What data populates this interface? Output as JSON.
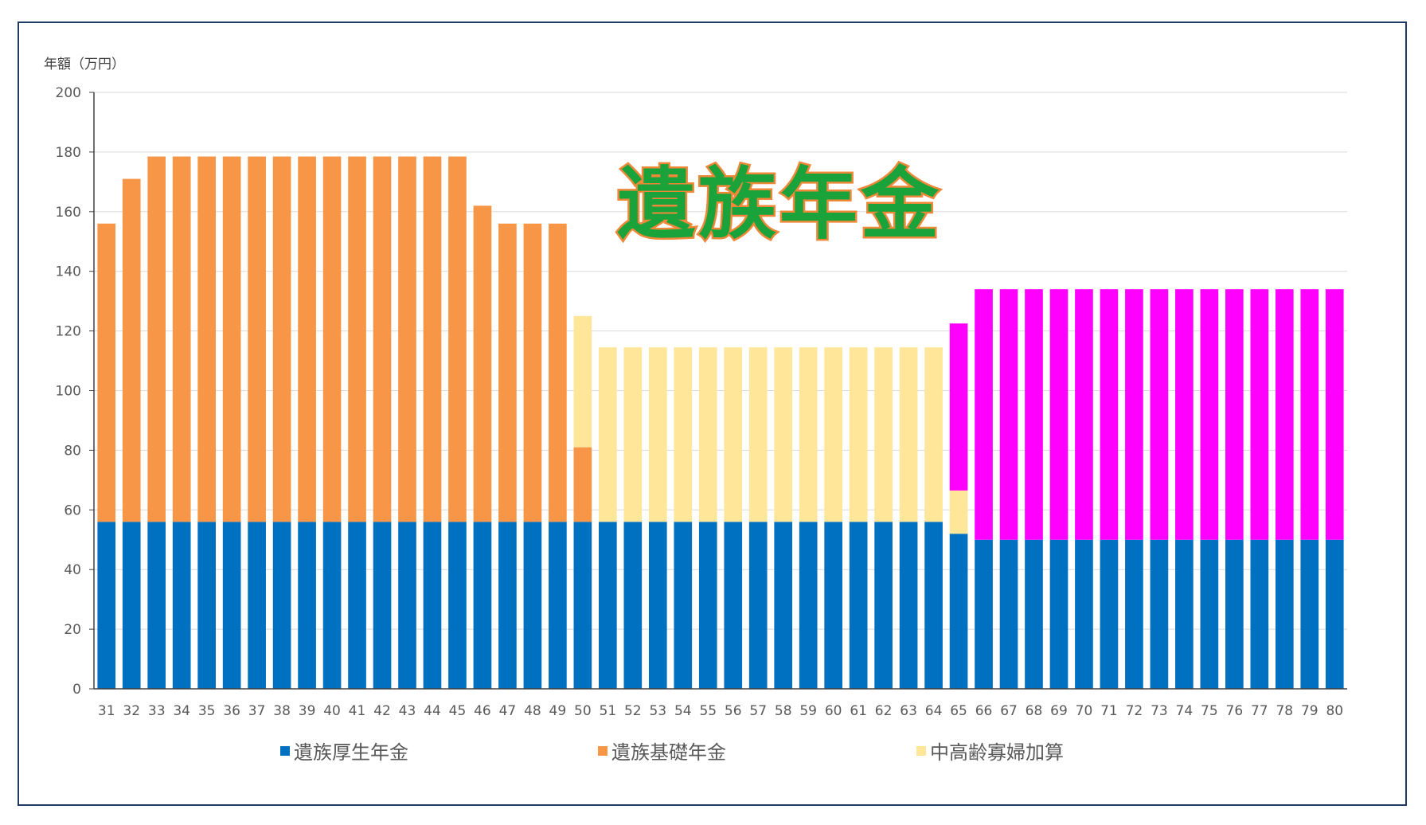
{
  "chart_data": {
    "type": "bar",
    "stacked": true,
    "title": "遺族年金",
    "ylabel": "年額（万円）",
    "xlabel": "",
    "ylim": [
      0,
      200
    ],
    "yticks": [
      0,
      20,
      40,
      60,
      80,
      100,
      120,
      140,
      160,
      180,
      200
    ],
    "grid": true,
    "legend_position": "bottom",
    "categories": [
      "31",
      "32",
      "33",
      "34",
      "35",
      "36",
      "37",
      "38",
      "39",
      "40",
      "41",
      "42",
      "43",
      "44",
      "45",
      "46",
      "47",
      "48",
      "49",
      "50",
      "51",
      "52",
      "53",
      "54",
      "55",
      "56",
      "57",
      "58",
      "59",
      "60",
      "61",
      "62",
      "63",
      "64",
      "65",
      "66",
      "67",
      "68",
      "69",
      "70",
      "71",
      "72",
      "73",
      "74",
      "75",
      "76",
      "77",
      "78",
      "79",
      "80"
    ],
    "series": [
      {
        "name": "遺族厚生年金",
        "color": "#0070c0",
        "values": [
          56,
          56,
          56,
          56,
          56,
          56,
          56,
          56,
          56,
          56,
          56,
          56,
          56,
          56,
          56,
          56,
          56,
          56,
          56,
          56,
          56,
          56,
          56,
          56,
          56,
          56,
          56,
          56,
          56,
          56,
          56,
          56,
          56,
          56,
          52,
          50,
          50,
          50,
          50,
          50,
          50,
          50,
          50,
          50,
          50,
          50,
          50,
          50,
          50,
          50
        ]
      },
      {
        "name": "遺族基礎年金",
        "color": "#f79646",
        "values": [
          100,
          115,
          122.5,
          122.5,
          122.5,
          122.5,
          122.5,
          122.5,
          122.5,
          122.5,
          122.5,
          122.5,
          122.5,
          122.5,
          122.5,
          106,
          100,
          100,
          100,
          25,
          0,
          0,
          0,
          0,
          0,
          0,
          0,
          0,
          0,
          0,
          0,
          0,
          0,
          0,
          0,
          0,
          0,
          0,
          0,
          0,
          0,
          0,
          0,
          0,
          0,
          0,
          0,
          0,
          0,
          0
        ]
      },
      {
        "name": "中高齢寡婦加算",
        "color": "#ffe699",
        "values": [
          0,
          0,
          0,
          0,
          0,
          0,
          0,
          0,
          0,
          0,
          0,
          0,
          0,
          0,
          0,
          0,
          0,
          0,
          0,
          44,
          58.5,
          58.5,
          58.5,
          58.5,
          58.5,
          58.5,
          58.5,
          58.5,
          58.5,
          58.5,
          58.5,
          58.5,
          58.5,
          58.5,
          14.5,
          0,
          0,
          0,
          0,
          0,
          0,
          0,
          0,
          0,
          0,
          0,
          0,
          0,
          0,
          0
        ]
      },
      {
        "color": "#ff00ff",
        "values": [
          0,
          0,
          0,
          0,
          0,
          0,
          0,
          0,
          0,
          0,
          0,
          0,
          0,
          0,
          0,
          0,
          0,
          0,
          0,
          0,
          0,
          0,
          0,
          0,
          0,
          0,
          0,
          0,
          0,
          0,
          0,
          0,
          0,
          0,
          56,
          84,
          84,
          84,
          84,
          84,
          84,
          84,
          84,
          84,
          84,
          84,
          84,
          84,
          84,
          84
        ]
      }
    ]
  }
}
